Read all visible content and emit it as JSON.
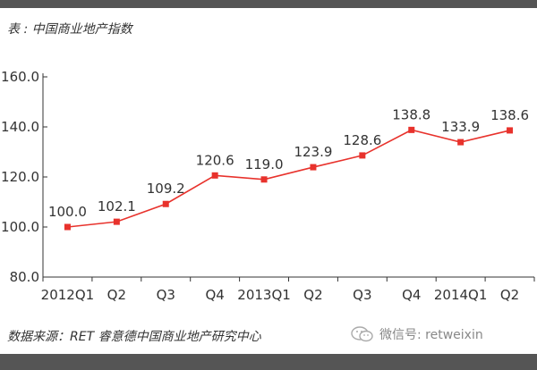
{
  "header": {
    "title": "表 : 中国商业地产指数"
  },
  "footer": {
    "source": "数据来源：RET 睿意德中国商业地产研究中心",
    "wechat": "微信号: retweixin"
  },
  "colors": {
    "line": "#e8322c",
    "axis": "#333333",
    "bar": "#555555"
  },
  "icons": {
    "wechat": "wechat-icon"
  },
  "chart_data": {
    "type": "line",
    "title": "中国商业地产指数",
    "xlabel": "",
    "ylabel": "",
    "categories": [
      "2012Q1",
      "Q2",
      "Q3",
      "Q4",
      "2013Q1",
      "Q2",
      "Q3",
      "Q4",
      "2014Q1",
      "Q2"
    ],
    "values": [
      100.0,
      102.1,
      109.2,
      120.6,
      119.0,
      123.9,
      128.6,
      138.8,
      133.9,
      138.6
    ],
    "labels": [
      "100.0",
      "102.1",
      "109.2",
      "120.6",
      "119.0",
      "123.9",
      "128.6",
      "138.8",
      "133.9",
      "138.6"
    ],
    "yticks": [
      "80.0",
      "100.0",
      "120.0",
      "140.0",
      "160.0"
    ],
    "ylim": [
      80,
      160
    ],
    "grid": false,
    "legend": "none"
  }
}
